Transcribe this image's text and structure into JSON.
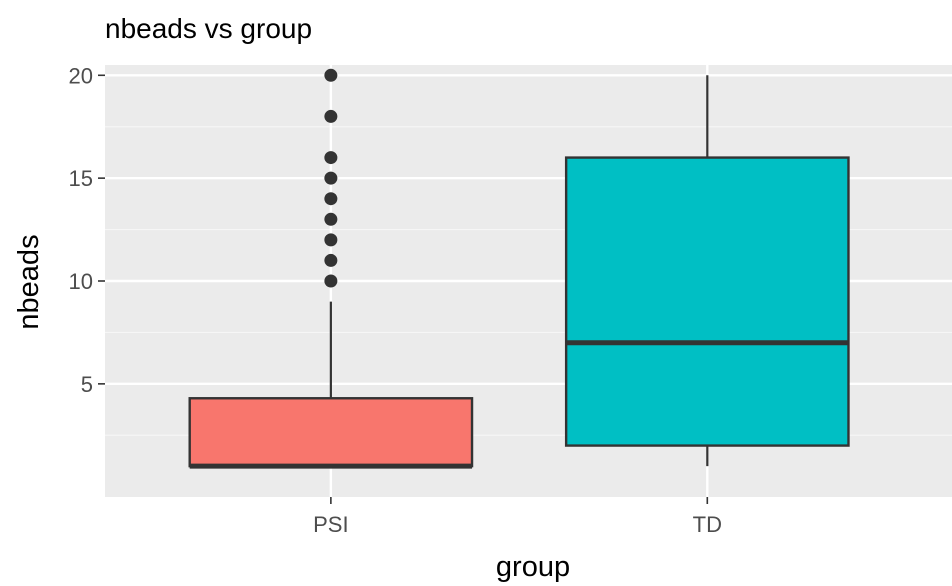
{
  "chart_data": {
    "type": "boxplot",
    "title": "nbeads vs group",
    "xlabel": "group",
    "ylabel": "nbeads",
    "categories": [
      "PSI",
      "TD"
    ],
    "ylim": [
      -0.5,
      20.5
    ],
    "yticks": [
      5,
      10,
      15,
      20
    ],
    "grid": true,
    "legend": "none",
    "boxes": [
      {
        "category": "PSI",
        "whisker_low": 1,
        "q1": 1,
        "median": 1,
        "q3": 4.3,
        "whisker_high": 9,
        "outliers": [
          10,
          11,
          12,
          13,
          14,
          15,
          16,
          18,
          20
        ],
        "fill": "#F8766D"
      },
      {
        "category": "TD",
        "whisker_low": 1,
        "q1": 2,
        "median": 7,
        "q3": 16,
        "whisker_high": 20,
        "outliers": [],
        "fill": "#00BFC4"
      }
    ],
    "colors": {
      "panel_background": "#EBEBEB",
      "grid_major": "#FFFFFF",
      "box_line": "#333333",
      "tick_label": "#4D4D4D"
    }
  }
}
